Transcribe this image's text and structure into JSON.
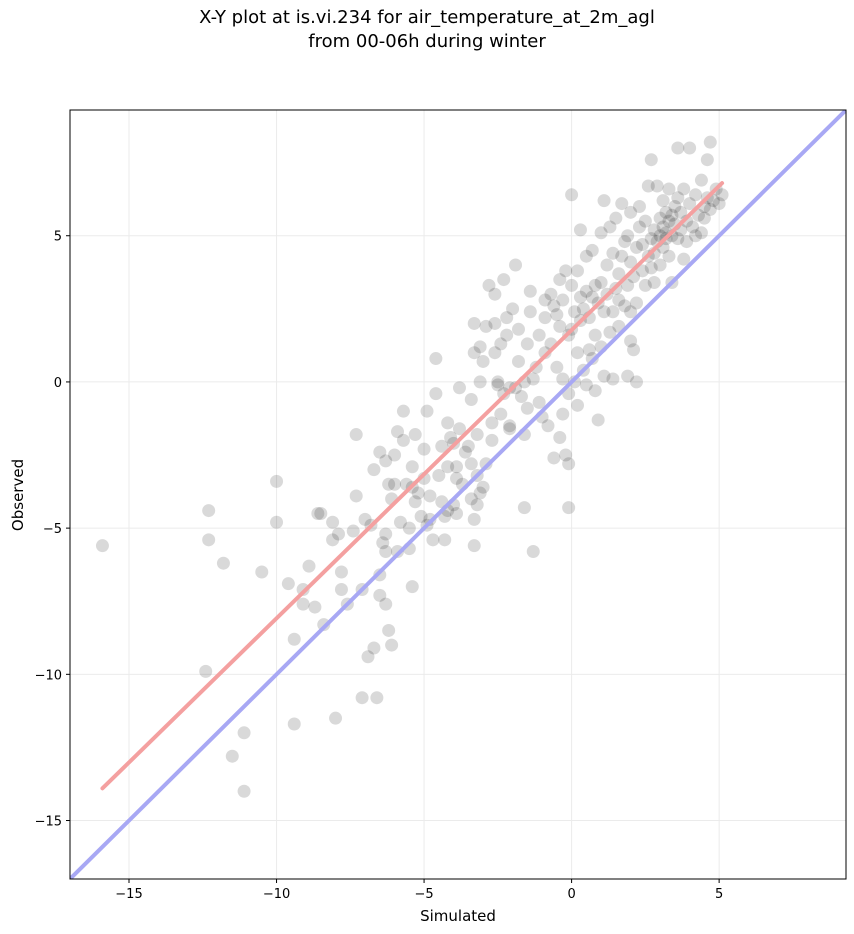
{
  "chart_data": {
    "type": "scatter",
    "title": "X-Y plot at is.vi.234 for air_temperature_at_2m_agl",
    "subtitle": "from 00-06h during winter",
    "xlabel": "Simulated",
    "ylabel": "Observed",
    "xlim": [
      -17,
      9.3
    ],
    "ylim": [
      -17,
      9.3
    ],
    "xticks": [
      -15,
      -10,
      -5,
      0,
      5
    ],
    "yticks": [
      -15,
      -10,
      -5,
      0,
      5
    ],
    "xtick_labels": [
      "−15",
      "−10",
      "−5",
      "0",
      "5"
    ],
    "ytick_labels": [
      "−15",
      "−10",
      "−5",
      "0",
      "5"
    ],
    "grid": true,
    "colors": {
      "points": "#000000",
      "fit_line": "#f4a0a0",
      "identity_line": "#a8a8f4",
      "grid": "#ebebeb"
    },
    "fit_line": {
      "x": [
        -15.9,
        5.1
      ],
      "y": [
        -13.9,
        6.8
      ]
    },
    "identity_line": {
      "x": [
        -17,
        9.3
      ],
      "y": [
        -17,
        9.3
      ]
    },
    "points": [
      [
        -15.9,
        -5.6
      ],
      [
        -12.4,
        -9.9
      ],
      [
        -12.3,
        -4.4
      ],
      [
        -12.3,
        -5.4
      ],
      [
        -11.8,
        -6.2
      ],
      [
        -11.5,
        -12.8
      ],
      [
        -11.1,
        -12.0
      ],
      [
        -11.1,
        -14.0
      ],
      [
        -10.5,
        -6.5
      ],
      [
        -10.0,
        -3.4
      ],
      [
        -10.0,
        -4.8
      ],
      [
        -9.6,
        -6.9
      ],
      [
        -9.4,
        -11.7
      ],
      [
        -9.4,
        -8.8
      ],
      [
        -9.1,
        -7.6
      ],
      [
        -9.1,
        -7.1
      ],
      [
        -8.9,
        -6.3
      ],
      [
        -8.7,
        -7.7
      ],
      [
        -8.6,
        -4.5
      ],
      [
        -8.5,
        -4.5
      ],
      [
        -8.4,
        -8.3
      ],
      [
        -8.1,
        -5.4
      ],
      [
        -8.1,
        -4.8
      ],
      [
        -8.0,
        -11.5
      ],
      [
        -7.9,
        -5.2
      ],
      [
        -7.8,
        -7.1
      ],
      [
        -7.8,
        -6.5
      ],
      [
        -7.6,
        -7.6
      ],
      [
        -7.4,
        -5.1
      ],
      [
        -7.3,
        -1.8
      ],
      [
        -7.3,
        -3.9
      ],
      [
        -7.1,
        -10.8
      ],
      [
        -7.1,
        -7.1
      ],
      [
        -7.0,
        -4.7
      ],
      [
        -6.9,
        -9.4
      ],
      [
        -6.8,
        -4.9
      ],
      [
        -6.7,
        -9.1
      ],
      [
        -6.7,
        -3.0
      ],
      [
        -6.6,
        -10.8
      ],
      [
        -6.5,
        -7.3
      ],
      [
        -6.5,
        -2.4
      ],
      [
        -6.5,
        -6.6
      ],
      [
        -6.4,
        -5.5
      ],
      [
        -6.3,
        -2.7
      ],
      [
        -6.3,
        -5.8
      ],
      [
        -6.3,
        -5.2
      ],
      [
        -6.3,
        -7.6
      ],
      [
        -6.2,
        -3.5
      ],
      [
        -6.2,
        -8.5
      ],
      [
        -6.1,
        -9.0
      ],
      [
        -6.1,
        -4.0
      ],
      [
        -6.0,
        -2.5
      ],
      [
        -6.0,
        -3.5
      ],
      [
        -5.9,
        -1.7
      ],
      [
        -5.9,
        -5.8
      ],
      [
        -5.8,
        -4.8
      ],
      [
        -5.7,
        -1.0
      ],
      [
        -5.7,
        -2.0
      ],
      [
        -5.6,
        -3.5
      ],
      [
        -5.5,
        -5.7
      ],
      [
        -5.5,
        -5.0
      ],
      [
        -5.4,
        -2.9
      ],
      [
        -5.4,
        -7.0
      ],
      [
        -5.4,
        -3.6
      ],
      [
        -5.3,
        -1.8
      ],
      [
        -5.3,
        -4.1
      ],
      [
        -5.2,
        -3.8
      ],
      [
        -5.1,
        -4.6
      ],
      [
        -5.0,
        -2.3
      ],
      [
        -5.0,
        -3.3
      ],
      [
        -4.9,
        -4.9
      ],
      [
        -4.9,
        -1.0
      ],
      [
        -4.8,
        -3.9
      ],
      [
        -4.8,
        -4.7
      ],
      [
        -4.7,
        -5.4
      ],
      [
        -4.6,
        -0.4
      ],
      [
        -4.6,
        0.8
      ],
      [
        -4.5,
        -3.2
      ],
      [
        -4.4,
        -2.2
      ],
      [
        -4.4,
        -4.1
      ],
      [
        -4.3,
        -4.6
      ],
      [
        -4.3,
        -5.4
      ],
      [
        -4.2,
        -4.4
      ],
      [
        -4.2,
        -1.4
      ],
      [
        -4.2,
        -2.9
      ],
      [
        -4.1,
        -1.9
      ],
      [
        -4.0,
        -2.1
      ],
      [
        -4.0,
        -4.2
      ],
      [
        -3.9,
        -3.3
      ],
      [
        -3.9,
        -4.5
      ],
      [
        -3.9,
        -2.9
      ],
      [
        -3.8,
        -0.2
      ],
      [
        -3.8,
        -1.6
      ],
      [
        -3.7,
        -3.5
      ],
      [
        -3.6,
        -2.4
      ],
      [
        -3.5,
        -2.2
      ],
      [
        -3.4,
        -4.0
      ],
      [
        -3.4,
        -0.6
      ],
      [
        -3.4,
        -2.8
      ],
      [
        -3.3,
        -5.6
      ],
      [
        -3.3,
        -4.7
      ],
      [
        -3.3,
        1.0
      ],
      [
        -3.3,
        2.0
      ],
      [
        -3.2,
        -4.2
      ],
      [
        -3.2,
        -1.8
      ],
      [
        -3.2,
        -3.2
      ],
      [
        -3.1,
        -3.8
      ],
      [
        -3.1,
        0.0
      ],
      [
        -3.1,
        1.2
      ],
      [
        -3.0,
        0.7
      ],
      [
        -3.0,
        -3.6
      ],
      [
        -2.9,
        -2.8
      ],
      [
        -2.9,
        1.9
      ],
      [
        -2.8,
        3.3
      ],
      [
        -2.7,
        -2.0
      ],
      [
        -2.7,
        -1.4
      ],
      [
        -2.6,
        1.0
      ],
      [
        -2.6,
        2.0
      ],
      [
        -2.6,
        3.0
      ],
      [
        -2.5,
        0.0
      ],
      [
        -2.5,
        -0.1
      ],
      [
        -2.4,
        -1.1
      ],
      [
        -2.4,
        1.3
      ],
      [
        -2.3,
        -0.4
      ],
      [
        -2.3,
        3.5
      ],
      [
        -2.2,
        1.6
      ],
      [
        -2.2,
        2.2
      ],
      [
        -2.1,
        -1.6
      ],
      [
        -2.1,
        -1.5
      ],
      [
        -2.1,
        -0.2
      ],
      [
        -2.0,
        2.5
      ],
      [
        -1.9,
        -0.2
      ],
      [
        -1.9,
        4.0
      ],
      [
        -1.8,
        0.7
      ],
      [
        -1.8,
        1.8
      ],
      [
        -1.7,
        -0.5
      ],
      [
        -1.6,
        -4.3
      ],
      [
        -1.6,
        -1.8
      ],
      [
        -1.6,
        0.0
      ],
      [
        -1.5,
        1.3
      ],
      [
        -1.5,
        -0.9
      ],
      [
        -1.4,
        2.4
      ],
      [
        -1.4,
        3.1
      ],
      [
        -1.3,
        -5.8
      ],
      [
        -1.3,
        0.1
      ],
      [
        -1.2,
        0.5
      ],
      [
        -1.1,
        1.6
      ],
      [
        -1.1,
        -0.7
      ],
      [
        -1.0,
        -1.2
      ],
      [
        -0.9,
        1.0
      ],
      [
        -0.9,
        2.2
      ],
      [
        -0.9,
        2.8
      ],
      [
        -0.8,
        -1.5
      ],
      [
        -0.7,
        1.3
      ],
      [
        -0.7,
        3.0
      ],
      [
        -0.6,
        -2.6
      ],
      [
        -0.6,
        2.6
      ],
      [
        -0.5,
        0.5
      ],
      [
        -0.5,
        2.3
      ],
      [
        -0.4,
        -1.9
      ],
      [
        -0.4,
        1.9
      ],
      [
        -0.4,
        3.5
      ],
      [
        -0.3,
        -1.1
      ],
      [
        -0.3,
        0.1
      ],
      [
        -0.3,
        2.8
      ],
      [
        -0.2,
        -2.5
      ],
      [
        -0.2,
        3.8
      ],
      [
        -0.1,
        -2.8
      ],
      [
        -0.1,
        -4.3
      ],
      [
        -0.1,
        -0.4
      ],
      [
        -0.1,
        1.6
      ],
      [
        0.0,
        6.4
      ],
      [
        0.0,
        1.8
      ],
      [
        0.0,
        3.3
      ],
      [
        0.1,
        0.0
      ],
      [
        0.1,
        2.4
      ],
      [
        0.2,
        -0.8
      ],
      [
        0.2,
        1.0
      ],
      [
        0.2,
        3.8
      ],
      [
        0.3,
        2.9
      ],
      [
        0.3,
        5.2
      ],
      [
        0.3,
        2.1
      ],
      [
        0.4,
        0.4
      ],
      [
        0.4,
        2.5
      ],
      [
        0.5,
        4.3
      ],
      [
        0.5,
        -0.1
      ],
      [
        0.5,
        3.1
      ],
      [
        0.6,
        1.1
      ],
      [
        0.6,
        2.2
      ],
      [
        0.7,
        0.8
      ],
      [
        0.7,
        2.9
      ],
      [
        0.7,
        4.5
      ],
      [
        0.8,
        -0.3
      ],
      [
        0.8,
        1.6
      ],
      [
        0.8,
        3.3
      ],
      [
        0.9,
        -1.3
      ],
      [
        0.9,
        2.7
      ],
      [
        1.0,
        1.2
      ],
      [
        1.0,
        3.4
      ],
      [
        1.0,
        5.1
      ],
      [
        1.1,
        0.2
      ],
      [
        1.1,
        2.4
      ],
      [
        1.1,
        6.2
      ],
      [
        1.2,
        3.0
      ],
      [
        1.2,
        4.0
      ],
      [
        1.3,
        1.7
      ],
      [
        1.3,
        5.3
      ],
      [
        1.4,
        0.1
      ],
      [
        1.4,
        2.4
      ],
      [
        1.4,
        4.4
      ],
      [
        1.5,
        3.2
      ],
      [
        1.5,
        5.6
      ],
      [
        1.6,
        1.9
      ],
      [
        1.6,
        2.8
      ],
      [
        1.6,
        3.7
      ],
      [
        1.7,
        6.1
      ],
      [
        1.7,
        4.3
      ],
      [
        1.8,
        2.6
      ],
      [
        1.8,
        4.8
      ],
      [
        1.9,
        0.2
      ],
      [
        1.9,
        3.3
      ],
      [
        1.9,
        5.0
      ],
      [
        2.0,
        1.4
      ],
      [
        2.0,
        2.4
      ],
      [
        2.0,
        4.1
      ],
      [
        2.0,
        5.8
      ],
      [
        2.1,
        3.6
      ],
      [
        2.1,
        1.1
      ],
      [
        2.2,
        0.0
      ],
      [
        2.2,
        2.7
      ],
      [
        2.2,
        4.6
      ],
      [
        2.3,
        5.3
      ],
      [
        2.3,
        6.0
      ],
      [
        2.4,
        3.8
      ],
      [
        2.4,
        4.7
      ],
      [
        2.5,
        3.3
      ],
      [
        2.5,
        5.5
      ],
      [
        2.6,
        4.3
      ],
      [
        2.6,
        6.7
      ],
      [
        2.7,
        3.9
      ],
      [
        2.7,
        4.9
      ],
      [
        2.7,
        7.6
      ],
      [
        2.8,
        4.4
      ],
      [
        2.8,
        5.2
      ],
      [
        2.8,
        3.4
      ],
      [
        2.9,
        6.7
      ],
      [
        2.9,
        4.8
      ],
      [
        3.0,
        5.6
      ],
      [
        3.0,
        4.0
      ],
      [
        3.0,
        5.0
      ],
      [
        3.1,
        6.2
      ],
      [
        3.1,
        4.6
      ],
      [
        3.1,
        5.3
      ],
      [
        3.2,
        5.8
      ],
      [
        3.2,
        4.9
      ],
      [
        3.2,
        5.1
      ],
      [
        3.3,
        5.5
      ],
      [
        3.3,
        4.3
      ],
      [
        3.3,
        6.6
      ],
      [
        3.4,
        5.0
      ],
      [
        3.4,
        5.7
      ],
      [
        3.4,
        3.4
      ],
      [
        3.5,
        6.0
      ],
      [
        3.5,
        5.4
      ],
      [
        3.6,
        8.0
      ],
      [
        3.6,
        4.9
      ],
      [
        3.6,
        6.3
      ],
      [
        3.7,
        5.2
      ],
      [
        3.7,
        5.8
      ],
      [
        3.8,
        4.2
      ],
      [
        3.8,
        6.6
      ],
      [
        3.9,
        5.5
      ],
      [
        3.9,
        4.8
      ],
      [
        4.0,
        8.0
      ],
      [
        4.0,
        6.1
      ],
      [
        4.1,
        5.3
      ],
      [
        4.2,
        5.0
      ],
      [
        4.2,
        6.4
      ],
      [
        4.3,
        5.7
      ],
      [
        4.4,
        5.1
      ],
      [
        4.4,
        6.9
      ],
      [
        4.5,
        6.0
      ],
      [
        4.5,
        5.6
      ],
      [
        4.6,
        7.6
      ],
      [
        4.6,
        6.3
      ],
      [
        4.7,
        8.2
      ],
      [
        4.7,
        5.9
      ],
      [
        4.8,
        6.2
      ],
      [
        4.9,
        6.6
      ],
      [
        5.0,
        6.1
      ],
      [
        5.1,
        6.4
      ]
    ]
  }
}
